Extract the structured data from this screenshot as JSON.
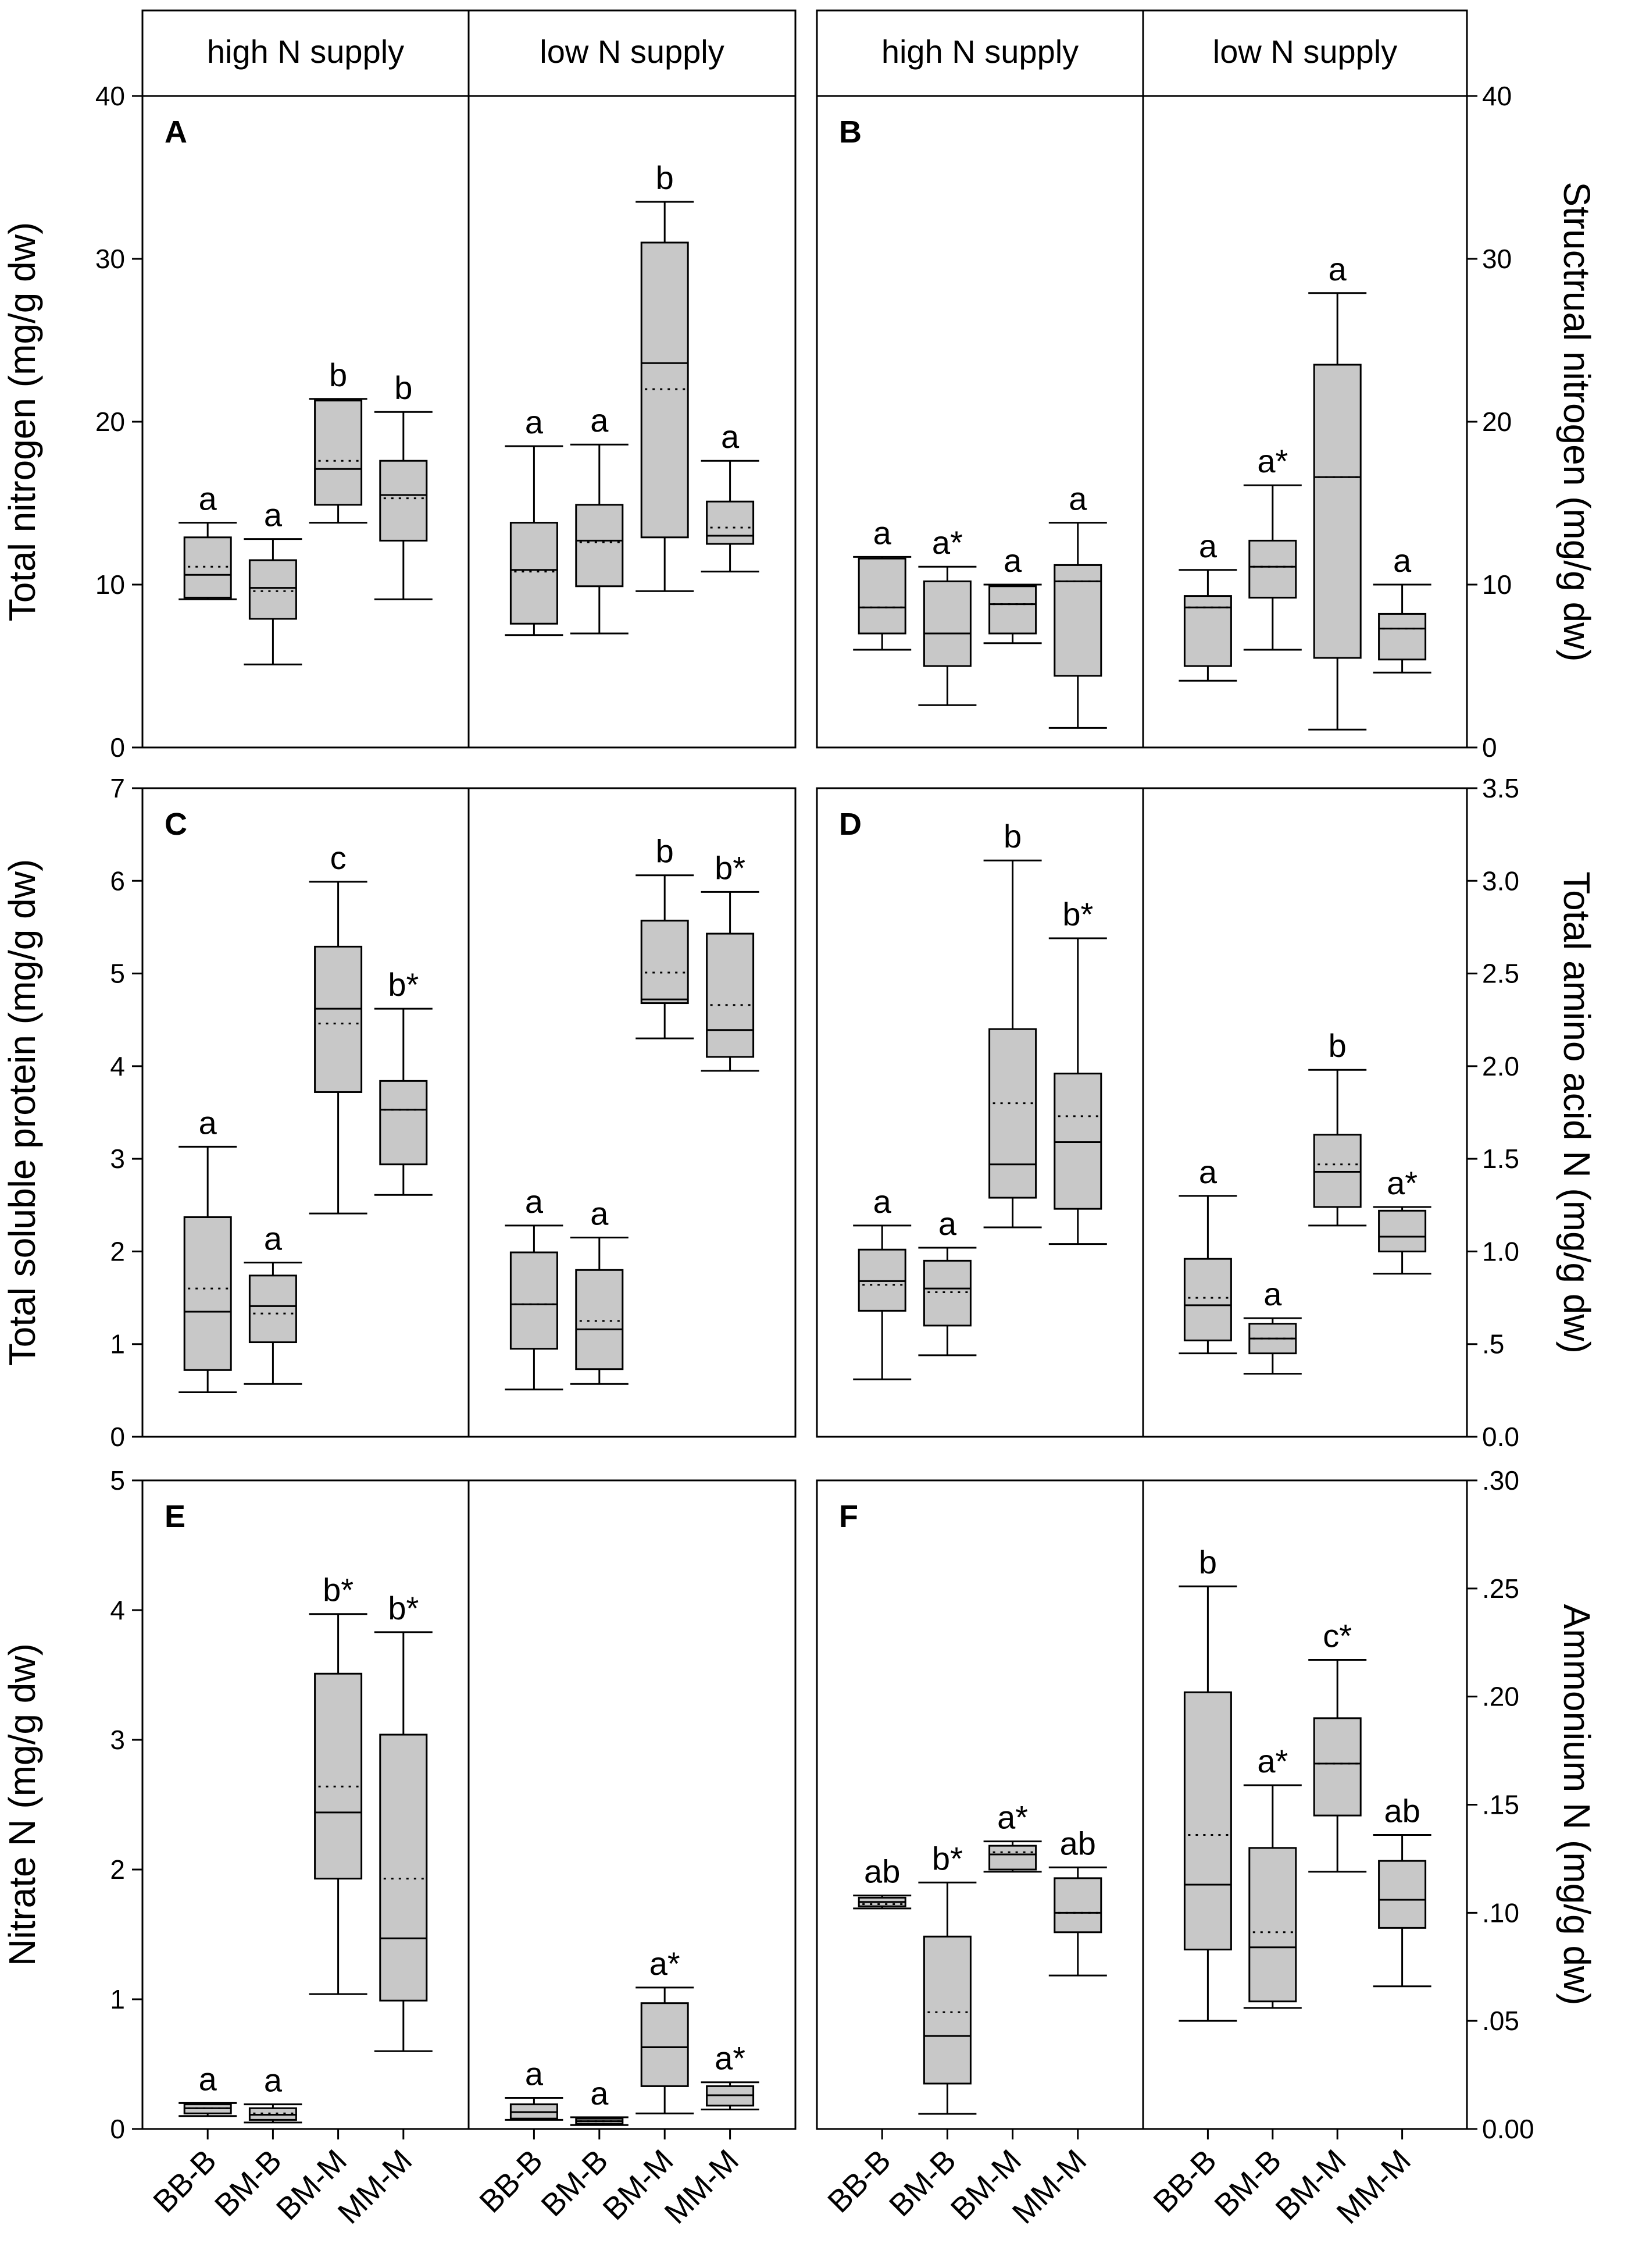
{
  "chart_data": {
    "type": "boxplot",
    "categories": [
      "BB-B",
      "BM-B",
      "BM-M",
      "MM-M"
    ],
    "headers": [
      "high N supply",
      "low N supply",
      "high N supply",
      "low N supply"
    ],
    "panels": [
      {
        "id": "A",
        "side": "left",
        "row": 0,
        "ylabel": "Total nitrogen (mg/g dw)",
        "ylim": [
          0,
          40
        ],
        "ticks": [
          0,
          10,
          20,
          30,
          40
        ],
        "tick_labels": [
          "0",
          "10",
          "20",
          "30",
          "40"
        ],
        "groups": [
          {
            "supply": "high N supply",
            "boxes": [
              {
                "category": "BB-B",
                "whisker_low": 9.1,
                "q1": 9.2,
                "median": 10.6,
                "mean": 11.1,
                "q3": 12.9,
                "whisker_high": 13.8,
                "letter": "a"
              },
              {
                "category": "BM-B",
                "whisker_low": 5.1,
                "q1": 7.9,
                "median": 9.8,
                "mean": 9.6,
                "q3": 11.5,
                "whisker_high": 12.8,
                "letter": "a"
              },
              {
                "category": "BM-M",
                "whisker_low": 13.8,
                "q1": 14.9,
                "median": 17.1,
                "mean": 17.6,
                "q3": 21.3,
                "whisker_high": 21.4,
                "letter": "b"
              },
              {
                "category": "MM-M",
                "whisker_low": 9.1,
                "q1": 12.7,
                "median": 15.5,
                "mean": 15.3,
                "q3": 17.6,
                "whisker_high": 20.6,
                "letter": "b"
              }
            ]
          },
          {
            "supply": "low N supply",
            "boxes": [
              {
                "category": "BB-B",
                "whisker_low": 6.9,
                "q1": 7.6,
                "median": 10.9,
                "mean": 10.8,
                "q3": 13.8,
                "whisker_high": 18.5,
                "letter": "a"
              },
              {
                "category": "BM-B",
                "whisker_low": 7.0,
                "q1": 9.9,
                "median": 12.7,
                "mean": 12.6,
                "q3": 14.9,
                "whisker_high": 18.6,
                "letter": "a"
              },
              {
                "category": "BM-M",
                "whisker_low": 9.6,
                "q1": 12.9,
                "median": 23.6,
                "mean": 22.0,
                "q3": 31.0,
                "whisker_high": 33.5,
                "letter": "b"
              },
              {
                "category": "MM-M",
                "whisker_low": 10.8,
                "q1": 12.5,
                "median": 13.0,
                "mean": 13.5,
                "q3": 15.1,
                "whisker_high": 17.6,
                "letter": "a"
              }
            ]
          }
        ]
      },
      {
        "id": "B",
        "side": "right",
        "row": 0,
        "ylabel": "Structrual nitrogen (mg/g dw)",
        "ylim": [
          0,
          40
        ],
        "ticks": [
          0,
          10,
          20,
          30,
          40
        ],
        "tick_labels": [
          "0",
          "10",
          "20",
          "30",
          "40"
        ],
        "groups": [
          {
            "supply": "high N supply",
            "boxes": [
              {
                "category": "BB-B",
                "whisker_low": 6.0,
                "q1": 7.0,
                "median": 8.6,
                "mean": 8.6,
                "q3": 11.6,
                "whisker_high": 11.7,
                "letter": "a"
              },
              {
                "category": "BM-B",
                "whisker_low": 2.6,
                "q1": 5.0,
                "median": 7.0,
                "mean": 7.0,
                "q3": 10.2,
                "whisker_high": 11.1,
                "letter": "a*"
              },
              {
                "category": "BM-M",
                "whisker_low": 6.4,
                "q1": 7.0,
                "median": 8.8,
                "mean": 8.8,
                "q3": 9.9,
                "whisker_high": 10.0,
                "letter": "a"
              },
              {
                "category": "MM-M",
                "whisker_low": 1.2,
                "q1": 4.4,
                "median": 10.2,
                "mean": 10.2,
                "q3": 11.2,
                "whisker_high": 13.8,
                "letter": "a"
              }
            ]
          },
          {
            "supply": "low N supply",
            "boxes": [
              {
                "category": "BB-B",
                "whisker_low": 4.1,
                "q1": 5.0,
                "median": 8.6,
                "mean": 8.6,
                "q3": 9.3,
                "whisker_high": 10.9,
                "letter": "a"
              },
              {
                "category": "BM-B",
                "whisker_low": 6.0,
                "q1": 9.2,
                "median": 11.1,
                "mean": 11.1,
                "q3": 12.7,
                "whisker_high": 16.1,
                "letter": "a*"
              },
              {
                "category": "BM-M",
                "whisker_low": 1.1,
                "q1": 5.5,
                "median": 16.6,
                "mean": 16.6,
                "q3": 23.5,
                "whisker_high": 27.9,
                "letter": "a"
              },
              {
                "category": "MM-M",
                "whisker_low": 4.6,
                "q1": 5.4,
                "median": 7.3,
                "mean": 7.3,
                "q3": 8.2,
                "whisker_high": 10.0,
                "letter": "a"
              }
            ]
          }
        ]
      },
      {
        "id": "C",
        "side": "left",
        "row": 1,
        "ylabel": "Total soluble protein  (mg/g dw)",
        "ylim": [
          0,
          7
        ],
        "ticks": [
          0,
          1,
          2,
          3,
          4,
          5,
          6,
          7
        ],
        "tick_labels": [
          "0",
          "1",
          "2",
          "3",
          "4",
          "5",
          "6",
          "7"
        ],
        "groups": [
          {
            "supply": "high N supply",
            "boxes": [
              {
                "category": "BB-B",
                "whisker_low": 0.48,
                "q1": 0.72,
                "median": 1.35,
                "mean": 1.6,
                "q3": 2.37,
                "whisker_high": 3.13,
                "letter": "a"
              },
              {
                "category": "BM-B",
                "whisker_low": 0.57,
                "q1": 1.02,
                "median": 1.41,
                "mean": 1.33,
                "q3": 1.74,
                "whisker_high": 1.88,
                "letter": "a"
              },
              {
                "category": "BM-M",
                "whisker_low": 2.41,
                "q1": 3.72,
                "median": 4.62,
                "mean": 4.46,
                "q3": 5.29,
                "whisker_high": 5.99,
                "letter": "c"
              },
              {
                "category": "MM-M",
                "whisker_low": 2.61,
                "q1": 2.94,
                "median": 3.53,
                "mean": 3.53,
                "q3": 3.84,
                "whisker_high": 4.62,
                "letter": "b*"
              }
            ]
          },
          {
            "supply": "low N supply",
            "boxes": [
              {
                "category": "BB-B",
                "whisker_low": 0.51,
                "q1": 0.95,
                "median": 1.43,
                "mean": 1.43,
                "q3": 1.99,
                "whisker_high": 2.28,
                "letter": "a"
              },
              {
                "category": "BM-B",
                "whisker_low": 0.57,
                "q1": 0.73,
                "median": 1.16,
                "mean": 1.25,
                "q3": 1.8,
                "whisker_high": 2.15,
                "letter": "a"
              },
              {
                "category": "BM-M",
                "whisker_low": 4.3,
                "q1": 4.68,
                "median": 4.72,
                "mean": 5.01,
                "q3": 5.57,
                "whisker_high": 6.06,
                "letter": "b"
              },
              {
                "category": "MM-M",
                "whisker_low": 3.95,
                "q1": 4.1,
                "median": 4.39,
                "mean": 4.66,
                "q3": 5.43,
                "whisker_high": 5.88,
                "letter": "b*"
              }
            ]
          }
        ]
      },
      {
        "id": "D",
        "side": "right",
        "row": 1,
        "ylabel": "Total amino acid N  (mg/g dw)",
        "ylim": [
          0,
          3.5
        ],
        "ticks": [
          0,
          0.5,
          1,
          1.5,
          2,
          2.5,
          3,
          3.5
        ],
        "tick_labels": [
          "0.0",
          ".5",
          "1.0",
          "1.5",
          "2.0",
          "2.5",
          "3.0",
          "3.5"
        ],
        "groups": [
          {
            "supply": "high N supply",
            "boxes": [
              {
                "category": "BB-B",
                "whisker_low": 0.31,
                "q1": 0.68,
                "median": 0.84,
                "mean": 0.82,
                "q3": 1.01,
                "whisker_high": 1.14,
                "letter": "a"
              },
              {
                "category": "BM-B",
                "whisker_low": 0.44,
                "q1": 0.6,
                "median": 0.8,
                "mean": 0.78,
                "q3": 0.95,
                "whisker_high": 1.02,
                "letter": "a"
              },
              {
                "category": "BM-M",
                "whisker_low": 1.13,
                "q1": 1.29,
                "median": 1.47,
                "mean": 1.8,
                "q3": 2.2,
                "whisker_high": 3.11,
                "letter": "b"
              },
              {
                "category": "MM-M",
                "whisker_low": 1.04,
                "q1": 1.23,
                "median": 1.59,
                "mean": 1.73,
                "q3": 1.96,
                "whisker_high": 2.69,
                "letter": "b*"
              }
            ]
          },
          {
            "supply": "low N supply",
            "boxes": [
              {
                "category": "BB-B",
                "whisker_low": 0.45,
                "q1": 0.52,
                "median": 0.71,
                "mean": 0.75,
                "q3": 0.96,
                "whisker_high": 1.3,
                "letter": "a"
              },
              {
                "category": "BM-B",
                "whisker_low": 0.34,
                "q1": 0.45,
                "median": 0.53,
                "mean": 0.53,
                "q3": 0.61,
                "whisker_high": 0.64,
                "letter": "a"
              },
              {
                "category": "BM-M",
                "whisker_low": 1.14,
                "q1": 1.24,
                "median": 1.43,
                "mean": 1.47,
                "q3": 1.63,
                "whisker_high": 1.98,
                "letter": "b"
              },
              {
                "category": "MM-M",
                "whisker_low": 0.88,
                "q1": 1.0,
                "median": 1.08,
                "mean": 1.08,
                "q3": 1.22,
                "whisker_high": 1.24,
                "letter": "a*"
              }
            ]
          }
        ]
      },
      {
        "id": "E",
        "side": "left",
        "row": 2,
        "ylabel": "Nitrate N (mg/g dw)",
        "ylim": [
          0,
          5
        ],
        "ticks": [
          0,
          1,
          2,
          3,
          4,
          5
        ],
        "tick_labels": [
          "0",
          "1",
          "2",
          "3",
          "4",
          "5"
        ],
        "groups": [
          {
            "supply": "high N supply",
            "boxes": [
              {
                "category": "BB-B",
                "whisker_low": 0.1,
                "q1": 0.12,
                "median": 0.16,
                "mean": 0.16,
                "q3": 0.19,
                "whisker_high": 0.2,
                "letter": "a"
              },
              {
                "category": "BM-B",
                "whisker_low": 0.05,
                "q1": 0.07,
                "median": 0.11,
                "mean": 0.12,
                "q3": 0.16,
                "whisker_high": 0.19,
                "letter": "a"
              },
              {
                "category": "BM-M",
                "whisker_low": 1.04,
                "q1": 1.93,
                "median": 2.44,
                "mean": 2.64,
                "q3": 3.51,
                "whisker_high": 3.97,
                "letter": "b*"
              },
              {
                "category": "MM-M",
                "whisker_low": 0.6,
                "q1": 0.99,
                "median": 1.47,
                "mean": 1.93,
                "q3": 3.04,
                "whisker_high": 3.83,
                "letter": "b*"
              }
            ]
          },
          {
            "supply": "low N supply",
            "boxes": [
              {
                "category": "BB-B",
                "whisker_low": 0.07,
                "q1": 0.08,
                "median": 0.13,
                "mean": 0.13,
                "q3": 0.19,
                "whisker_high": 0.24,
                "letter": "a"
              },
              {
                "category": "BM-B",
                "whisker_low": 0.03,
                "q1": 0.04,
                "median": 0.06,
                "mean": 0.06,
                "q3": 0.08,
                "whisker_high": 0.09,
                "letter": "a"
              },
              {
                "category": "BM-M",
                "whisker_low": 0.12,
                "q1": 0.33,
                "median": 0.63,
                "mean": 0.63,
                "q3": 0.97,
                "whisker_high": 1.09,
                "letter": "a*"
              },
              {
                "category": "MM-M",
                "whisker_low": 0.15,
                "q1": 0.18,
                "median": 0.26,
                "mean": 0.26,
                "q3": 0.33,
                "whisker_high": 0.36,
                "letter": "a*"
              }
            ]
          }
        ]
      },
      {
        "id": "F",
        "side": "right",
        "row": 2,
        "ylabel": "Ammonium N (mg/g dw)",
        "ylim": [
          0,
          0.3
        ],
        "ticks": [
          0,
          0.05,
          0.1,
          0.15,
          0.2,
          0.25,
          0.3
        ],
        "tick_labels": [
          "0.00",
          ".05",
          ".10",
          ".15",
          ".20",
          ".25",
          ".30"
        ],
        "groups": [
          {
            "supply": "high N supply",
            "boxes": [
              {
                "category": "BB-B",
                "whisker_low": 0.102,
                "q1": 0.103,
                "median": 0.105,
                "mean": 0.104,
                "q3": 0.107,
                "whisker_high": 0.108,
                "letter": "ab"
              },
              {
                "category": "BM-B",
                "whisker_low": 0.007,
                "q1": 0.021,
                "median": 0.043,
                "mean": 0.054,
                "q3": 0.089,
                "whisker_high": 0.114,
                "letter": "b*"
              },
              {
                "category": "BM-M",
                "whisker_low": 0.119,
                "q1": 0.12,
                "median": 0.127,
                "mean": 0.128,
                "q3": 0.131,
                "whisker_high": 0.133,
                "letter": "a*"
              },
              {
                "category": "MM-M",
                "whisker_low": 0.071,
                "q1": 0.091,
                "median": 0.1,
                "mean": 0.1,
                "q3": 0.116,
                "whisker_high": 0.121,
                "letter": "ab"
              }
            ]
          },
          {
            "supply": "low N supply",
            "boxes": [
              {
                "category": "BB-B",
                "whisker_low": 0.05,
                "q1": 0.083,
                "median": 0.113,
                "mean": 0.136,
                "q3": 0.202,
                "whisker_high": 0.251,
                "letter": "b"
              },
              {
                "category": "BM-B",
                "whisker_low": 0.056,
                "q1": 0.059,
                "median": 0.084,
                "mean": 0.091,
                "q3": 0.13,
                "whisker_high": 0.159,
                "letter": "a*"
              },
              {
                "category": "BM-M",
                "whisker_low": 0.119,
                "q1": 0.145,
                "median": 0.169,
                "mean": 0.169,
                "q3": 0.19,
                "whisker_high": 0.217,
                "letter": "c*"
              },
              {
                "category": "MM-M",
                "whisker_low": 0.066,
                "q1": 0.093,
                "median": 0.106,
                "mean": 0.106,
                "q3": 0.124,
                "whisker_high": 0.136,
                "letter": "ab"
              }
            ]
          }
        ]
      }
    ]
  }
}
